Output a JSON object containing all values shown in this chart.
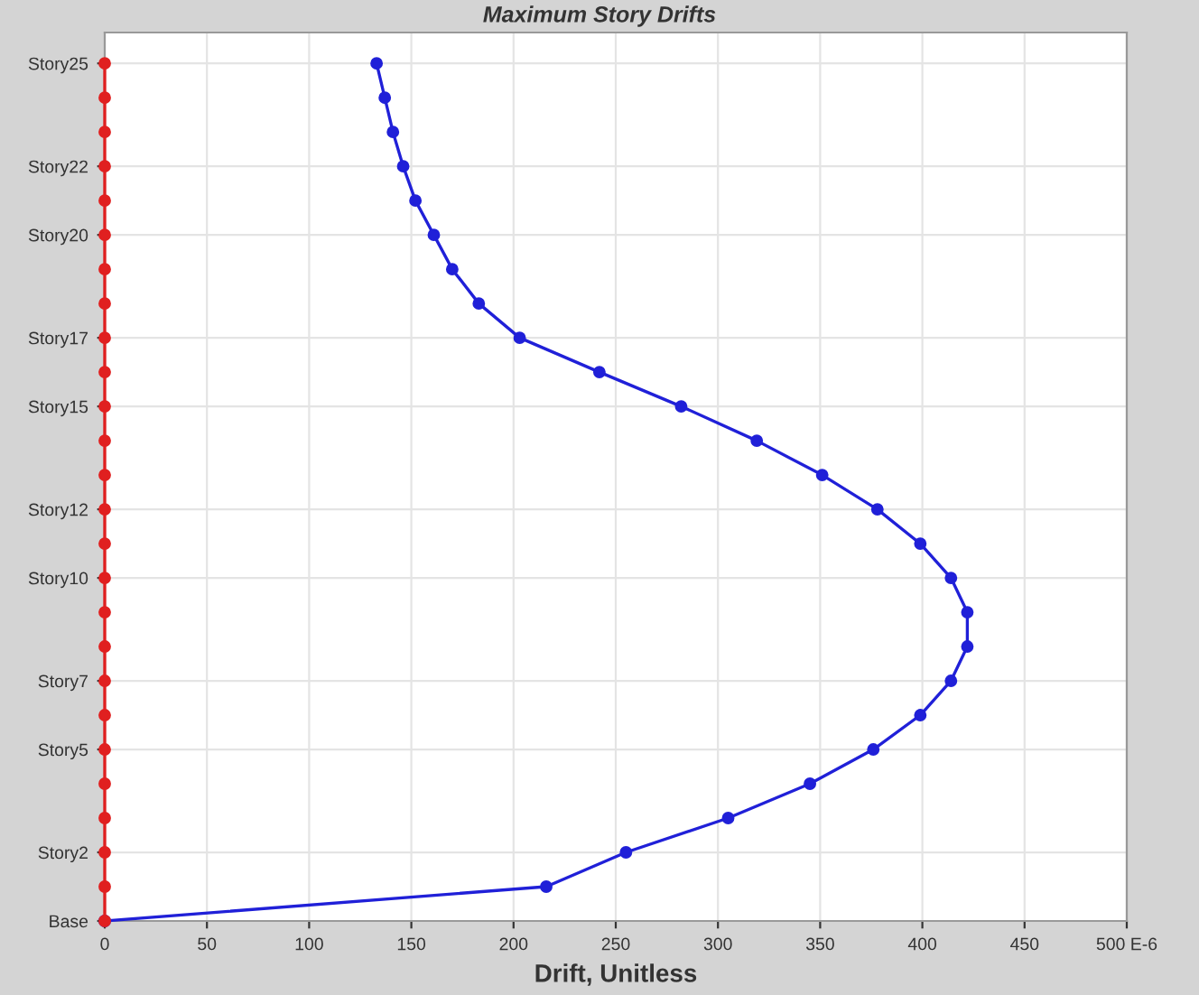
{
  "chart_data": {
    "type": "line",
    "title": "Maximum Story Drifts",
    "xlabel": "Drift, Unitless",
    "orientation": "horizontal",
    "categories": [
      "Story25",
      null,
      null,
      "Story22",
      null,
      "Story20",
      null,
      null,
      "Story17",
      null,
      "Story15",
      null,
      null,
      "Story12",
      null,
      "Story10",
      null,
      null,
      "Story7",
      null,
      "Story5",
      null,
      null,
      "Story2",
      null,
      "Base"
    ],
    "series": [
      {
        "color": "#2020d8",
        "values": [
          133,
          137,
          141,
          146,
          152,
          161,
          170,
          183,
          203,
          242,
          282,
          319,
          351,
          378,
          399,
          414,
          422,
          422,
          414,
          399,
          376,
          345,
          305,
          255,
          216,
          0
        ]
      },
      {
        "color": "#e02020",
        "values": [
          0,
          0,
          0,
          0,
          0,
          0,
          0,
          0,
          0,
          0,
          0,
          0,
          0,
          0,
          0,
          0,
          0,
          0,
          0,
          0,
          0,
          0,
          0,
          0,
          0,
          0
        ]
      }
    ],
    "xlim": [
      0,
      500
    ],
    "xticks": [
      0,
      50,
      100,
      150,
      200,
      250,
      300,
      350,
      400,
      450,
      {
        "value": 500,
        "label": "500 E-6"
      }
    ],
    "grid": true,
    "marker": "circle",
    "line_style": "solid"
  }
}
